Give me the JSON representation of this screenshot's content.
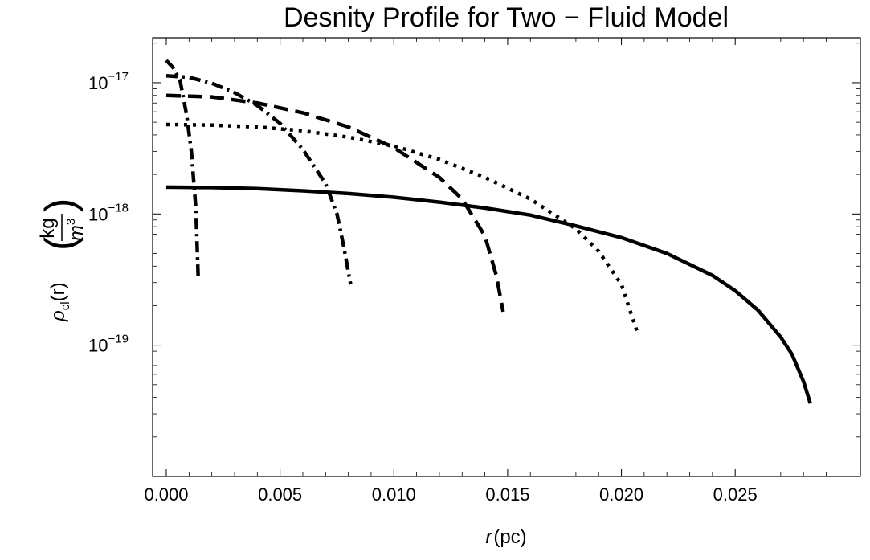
{
  "chart_data": {
    "type": "line",
    "title": "Desnity Profile for Two − Fluid Model",
    "xlabel": {
      "var": "r",
      "unit": "(pc)"
    },
    "ylabel": {
      "rho": "ρ",
      "sub": "cl",
      "arg": "(r)",
      "num": "kg",
      "den": "m",
      "den_exp": "3"
    },
    "y_scale": "log",
    "xlim": [
      -0.0006,
      0.0305
    ],
    "ylim": [
      1e-20,
      2.2e-17
    ],
    "x_ticks": [
      {
        "value": 0.0,
        "label": "0.000"
      },
      {
        "value": 0.005,
        "label": "0.005"
      },
      {
        "value": 0.01,
        "label": "0.010"
      },
      {
        "value": 0.015,
        "label": "0.015"
      },
      {
        "value": 0.02,
        "label": "0.020"
      },
      {
        "value": 0.025,
        "label": "0.025"
      }
    ],
    "y_ticks": [
      {
        "value": 1e-17,
        "base": "10",
        "exp": "−17"
      },
      {
        "value": 1e-18,
        "base": "10",
        "exp": "−18"
      },
      {
        "value": 1e-19,
        "base": "10",
        "exp": "−19"
      }
    ],
    "grid": false,
    "series": [
      {
        "style": "solid",
        "color": "#000000",
        "x": [
          0,
          0.002,
          0.004,
          0.006,
          0.008,
          0.01,
          0.012,
          0.014,
          0.016,
          0.018,
          0.02,
          0.022,
          0.024,
          0.025,
          0.026,
          0.027,
          0.0275,
          0.028,
          0.0283
        ],
        "y": [
          1.6e-18,
          1.59e-18,
          1.56e-18,
          1.5e-18,
          1.43e-18,
          1.34e-18,
          1.23e-18,
          1.11e-18,
          9.8e-19,
          8.1e-19,
          6.6e-19,
          5e-19,
          3.4e-19,
          2.6e-19,
          1.85e-19,
          1.15e-19,
          8.5e-20,
          5.3e-20,
          3.6e-20
        ]
      },
      {
        "style": "dot",
        "color": "#000000",
        "x": [
          0,
          0.002,
          0.004,
          0.006,
          0.008,
          0.01,
          0.012,
          0.014,
          0.016,
          0.018,
          0.019,
          0.02,
          0.0207
        ],
        "y": [
          4.8e-18,
          4.75e-18,
          4.6e-18,
          4.3e-18,
          3.85e-18,
          3.3e-18,
          2.6e-18,
          1.9e-18,
          1.3e-18,
          7.7e-19,
          5.2e-19,
          2.9e-19,
          1.25e-19
        ]
      },
      {
        "style": "dash",
        "color": "#000000",
        "x": [
          0,
          0.002,
          0.004,
          0.006,
          0.008,
          0.01,
          0.012,
          0.013,
          0.014,
          0.0145,
          0.0148
        ],
        "y": [
          8e-18,
          7.8e-18,
          7e-18,
          5.9e-18,
          4.6e-18,
          3.2e-18,
          1.9e-18,
          1.3e-18,
          6.8e-19,
          3.4e-19,
          1.8e-19
        ]
      },
      {
        "style": "dashdot",
        "color": "#000000",
        "x": [
          0,
          0.001,
          0.002,
          0.003,
          0.004,
          0.005,
          0.006,
          0.007,
          0.0075,
          0.0078,
          0.0081
        ],
        "y": [
          1.13e-17,
          1.1e-17,
          9.9e-18,
          8.4e-18,
          6.7e-18,
          4.9e-18,
          3.1e-18,
          1.7e-18,
          1e-18,
          5.6e-19,
          2.9e-19
        ]
      },
      {
        "style": "dashdotlong",
        "color": "#000000",
        "x": [
          0,
          0.0003,
          0.0006,
          0.0009,
          0.0011,
          0.0013,
          0.0014
        ],
        "y": [
          1.48e-17,
          1.3e-17,
          1.05e-17,
          5.6e-18,
          3e-18,
          1.1e-18,
          3.3e-19
        ]
      }
    ]
  }
}
